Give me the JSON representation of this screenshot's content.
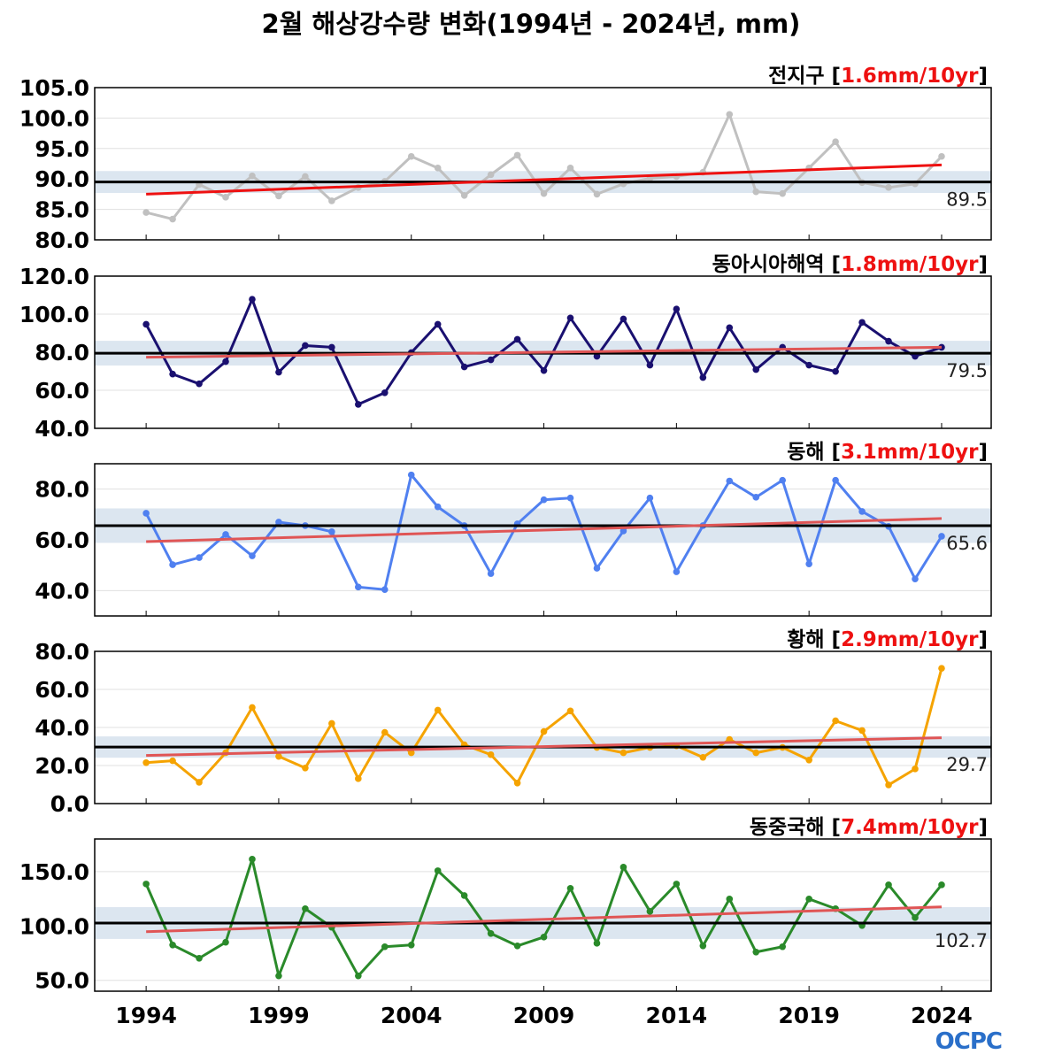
{
  "title": "2월 해상강수량 변화(1994년 - 2024년, mm)",
  "logo_text": "OCPC",
  "chart_data": [
    {
      "type": "line",
      "region": "전지구",
      "trend_label": "1.6mm/10yr",
      "color": "#c0c0c0",
      "trend_color": "#ee1111",
      "ylim": [
        80,
        105
      ],
      "yticks": [
        "80.0",
        "85.0",
        "90.0",
        "95.0",
        "100.0",
        "105.0"
      ],
      "mean": 89.5,
      "mean_label": "89.5",
      "band": 1.8,
      "trend": [
        87.5,
        92.3
      ],
      "values": [
        84.5,
        83.4,
        89.1,
        87.0,
        90.5,
        87.2,
        90.4,
        86.4,
        88.6,
        89.6,
        93.7,
        91.8,
        87.3,
        90.7,
        93.9,
        87.6,
        91.8,
        87.5,
        89.2,
        90.1,
        90.4,
        91.1,
        100.6,
        87.9,
        87.6,
        91.8,
        96.1,
        89.4,
        88.6,
        89.2,
        93.7
      ]
    },
    {
      "type": "line",
      "region": "동아시아해역",
      "trend_label": "1.8mm/10yr",
      "color": "#1a1070",
      "trend_color": "#e05555",
      "ylim": [
        40,
        120
      ],
      "yticks": [
        "40.0",
        "60.0",
        "80.0",
        "100.0",
        "120.0"
      ],
      "mean": 79.5,
      "mean_label": "79.5",
      "band": 6.5,
      "trend": [
        77.4,
        82.6
      ],
      "values": [
        94.7,
        68.5,
        63.4,
        75.1,
        107.8,
        69.5,
        83.5,
        82.6,
        52.6,
        58.7,
        79.8,
        94.7,
        72.3,
        76.0,
        86.8,
        70.4,
        98.0,
        77.9,
        97.5,
        73.2,
        102.7,
        66.7,
        92.9,
        70.9,
        82.6,
        73.2,
        69.9,
        95.7,
        85.8,
        77.9,
        82.6
      ]
    },
    {
      "type": "line",
      "region": "동해",
      "trend_label": "3.1mm/10yr",
      "color": "#5080f0",
      "trend_color": "#e05555",
      "ylim": [
        30,
        90
      ],
      "yticks": [
        "40.0",
        "60.0",
        "80.0"
      ],
      "mean": 65.6,
      "mean_label": "65.6",
      "band": 6.8,
      "trend": [
        59.3,
        68.4
      ],
      "values": [
        70.5,
        50.2,
        53.0,
        62.1,
        53.7,
        67.0,
        65.6,
        63.2,
        41.4,
        40.4,
        85.6,
        73.0,
        65.6,
        46.7,
        66.3,
        75.8,
        76.5,
        48.8,
        63.5,
        76.5,
        47.4,
        65.6,
        83.2,
        76.8,
        83.5,
        50.5,
        83.5,
        71.2,
        65.3,
        44.6,
        61.4
      ]
    },
    {
      "type": "line",
      "region": "황해",
      "trend_label": "2.9mm/10yr",
      "color": "#f5a300",
      "trend_color": "#e05555",
      "ylim": [
        0,
        80
      ],
      "yticks": [
        "0.0",
        "20.0",
        "40.0",
        "60.0",
        "80.0"
      ],
      "mean": 29.7,
      "mean_label": "29.7",
      "band": 5.6,
      "trend": [
        25.3,
        34.6
      ],
      "values": [
        21.5,
        22.5,
        11.2,
        26.7,
        50.5,
        24.8,
        18.7,
        42.1,
        13.1,
        37.4,
        26.7,
        49.1,
        30.9,
        25.7,
        10.8,
        37.9,
        48.7,
        29.5,
        26.7,
        29.5,
        30.4,
        24.3,
        33.7,
        26.7,
        29.5,
        22.9,
        43.5,
        38.4,
        9.8,
        18.2,
        71.1
      ]
    },
    {
      "type": "line",
      "region": "동중국해",
      "trend_label": "7.4mm/10yr",
      "color": "#2a8a2a",
      "trend_color": "#e05555",
      "ylim": [
        40,
        180
      ],
      "yticks": [
        "50.0",
        "100.0",
        "150.0"
      ],
      "mean": 102.7,
      "mean_label": "102.7",
      "band": 14.6,
      "trend": [
        94.7,
        117.5
      ],
      "values": [
        138.6,
        82.5,
        70.3,
        85.0,
        161.4,
        54.1,
        115.9,
        98.8,
        54.1,
        80.9,
        82.5,
        150.8,
        128.0,
        93.1,
        81.7,
        89.8,
        134.6,
        84.1,
        154.1,
        113.4,
        138.6,
        81.7,
        124.8,
        76.0,
        80.9,
        124.8,
        115.9,
        100.4,
        137.8,
        107.7,
        137.8
      ]
    }
  ],
  "x": {
    "start_year": 1994,
    "end_year": 2024,
    "xlim": [
      1992.06,
      2025.87
    ],
    "ticks": [
      "1994",
      "1999",
      "2004",
      "2009",
      "2014",
      "2019",
      "2024"
    ]
  }
}
